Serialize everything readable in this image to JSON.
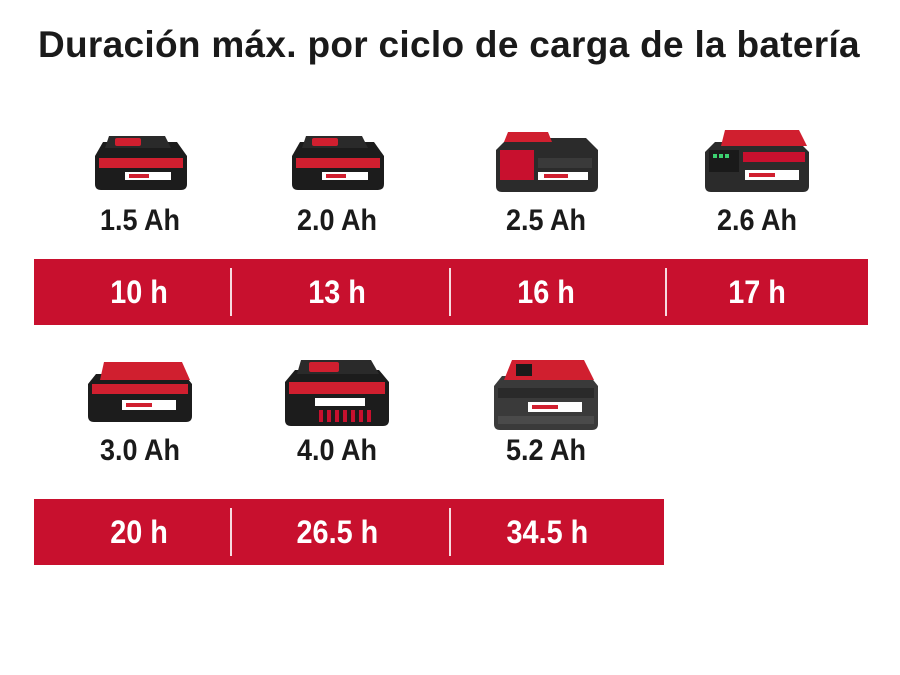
{
  "title": "Duración máx. por ciclo de carga de la batería",
  "colors": {
    "accent": "#c8102e",
    "text": "#1a1a1a",
    "background": "#ffffff"
  },
  "row1": {
    "capacities": [
      "1.5 Ah",
      "2.0 Ah",
      "2.5 Ah",
      "2.6 Ah"
    ],
    "durations": [
      "10 h",
      "13 h",
      "16 h",
      "17 h"
    ]
  },
  "row2": {
    "capacities": [
      "3.0 Ah",
      "4.0 Ah",
      "5.2 Ah"
    ],
    "durations": [
      "20 h",
      "26.5 h",
      "34.5 h"
    ]
  },
  "icons": [
    "battery-pack-icon"
  ]
}
